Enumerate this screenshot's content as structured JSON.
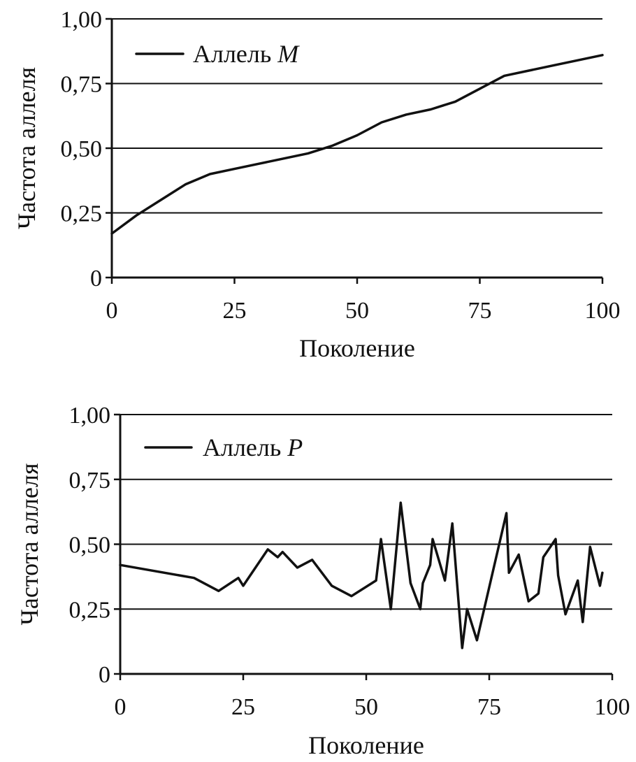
{
  "chart_data": [
    {
      "type": "line",
      "xlabel": "Поколение",
      "ylabel": "Частота аллеля",
      "xlim": [
        0,
        100
      ],
      "ylim": [
        0,
        1
      ],
      "xticks": [
        0,
        25,
        50,
        75,
        100
      ],
      "xtick_labels": [
        "0",
        "25",
        "50",
        "75",
        "100"
      ],
      "yticks": [
        0,
        0.25,
        0.5,
        0.75,
        1
      ],
      "ytick_labels": [
        "0",
        "0,25",
        "0,50",
        "0,75",
        "1,00"
      ],
      "grid": "horizontal",
      "legend": "top-left",
      "series": [
        {
          "name": "Аллель",
          "name_italic": "M",
          "x": [
            0,
            5,
            10,
            15,
            20,
            25,
            30,
            35,
            40,
            45,
            50,
            55,
            60,
            65,
            70,
            75,
            80,
            85,
            90,
            95,
            100
          ],
          "values": [
            0.17,
            0.24,
            0.3,
            0.36,
            0.4,
            0.42,
            0.44,
            0.46,
            0.48,
            0.51,
            0.55,
            0.6,
            0.63,
            0.65,
            0.68,
            0.73,
            0.78,
            0.8,
            0.82,
            0.84,
            0.86
          ]
        }
      ]
    },
    {
      "type": "line",
      "xlabel": "Поколение",
      "ylabel": "Частота аллеля",
      "xlim": [
        0,
        100
      ],
      "ylim": [
        0,
        1
      ],
      "xticks": [
        0,
        25,
        50,
        75,
        100
      ],
      "xtick_labels": [
        "0",
        "25",
        "50",
        "75",
        "100"
      ],
      "yticks": [
        0,
        0.25,
        0.5,
        0.75,
        1
      ],
      "ytick_labels": [
        "0",
        "0,25",
        "0,50",
        "0,75",
        "1,00"
      ],
      "grid": "horizontal",
      "legend": "top-left",
      "series": [
        {
          "name": "Аллель",
          "name_italic": "P",
          "x": [
            0,
            15,
            20,
            24,
            25,
            30,
            32,
            33,
            36,
            39,
            43,
            47,
            52,
            53,
            55,
            57,
            59,
            61,
            61.5,
            63,
            63.5,
            66,
            67.5,
            69.5,
            70.5,
            72.5,
            78.5,
            79,
            81,
            83,
            85,
            86,
            88.5,
            89,
            90.5,
            93,
            94,
            95.5,
            97.5,
            98
          ],
          "values": [
            0.42,
            0.37,
            0.32,
            0.37,
            0.34,
            0.48,
            0.45,
            0.47,
            0.41,
            0.44,
            0.34,
            0.3,
            0.36,
            0.52,
            0.25,
            0.66,
            0.35,
            0.25,
            0.35,
            0.42,
            0.52,
            0.36,
            0.58,
            0.1,
            0.25,
            0.13,
            0.62,
            0.39,
            0.46,
            0.28,
            0.31,
            0.45,
            0.52,
            0.38,
            0.23,
            0.36,
            0.2,
            0.49,
            0.34,
            0.39
          ]
        }
      ]
    }
  ]
}
